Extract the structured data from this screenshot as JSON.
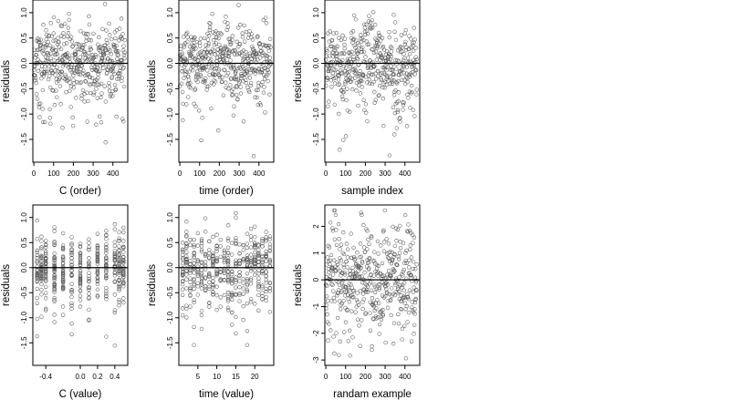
{
  "chart_data": [
    {
      "type": "scatter",
      "panel": "C-order",
      "xlabel": "C (order)",
      "ylabel": "residuals",
      "xlim": [
        -5,
        475
      ],
      "ylim": [
        -1.95,
        1.25
      ],
      "xticks": [
        0,
        100,
        200,
        300,
        400
      ],
      "xtick_labels": [
        "0",
        "100",
        "200",
        "300",
        "400"
      ],
      "yticks": [
        -1.5,
        -1.0,
        -0.5,
        0.0,
        0.5,
        1.0
      ],
      "ytick_labels": [
        "-1.5",
        "-1.0",
        "-0.5",
        "0.0",
        "0.5",
        "1.0"
      ],
      "reference_line_y": 0,
      "n_points": 460,
      "x_pattern": "index",
      "x_range": [
        0,
        460
      ],
      "seed": 11
    },
    {
      "type": "scatter",
      "panel": "time-order",
      "xlabel": "time (order)",
      "ylabel": "residuals",
      "xlim": [
        -5,
        475
      ],
      "ylim": [
        -1.95,
        1.25
      ],
      "xticks": [
        0,
        100,
        200,
        300,
        400
      ],
      "xtick_labels": [
        "0",
        "100",
        "200",
        "300",
        "400"
      ],
      "yticks": [
        -1.5,
        -1.0,
        -0.5,
        0.0,
        0.5,
        1.0
      ],
      "ytick_labels": [
        "-1.5",
        "-1.0",
        "-0.5",
        "0.0",
        "0.5",
        "1.0"
      ],
      "reference_line_y": 0,
      "n_points": 460,
      "x_pattern": "index",
      "x_range": [
        0,
        460
      ],
      "seed": 23
    },
    {
      "type": "scatter",
      "panel": "sample-index",
      "xlabel": "sample index",
      "ylabel": "residuals",
      "xlim": [
        -5,
        475
      ],
      "ylim": [
        -1.95,
        1.25
      ],
      "xticks": [
        0,
        100,
        200,
        300,
        400
      ],
      "xtick_labels": [
        "0",
        "100",
        "200",
        "300",
        "400"
      ],
      "yticks": [
        -1.5,
        -1.0,
        -0.5,
        0.0,
        0.5,
        1.0
      ],
      "ytick_labels": [
        "-1.5",
        "-1.0",
        "-0.5",
        "0.0",
        "0.5",
        "1.0"
      ],
      "reference_line_y": 0,
      "n_points": 460,
      "x_pattern": "index-structured",
      "x_range": [
        0,
        460
      ],
      "seed": 37
    },
    {
      "type": "scatter",
      "panel": "C-value",
      "xlabel": "C (value)",
      "ylabel": "residuals",
      "xlim": [
        -0.55,
        0.55
      ],
      "ylim": [
        -1.95,
        1.25
      ],
      "xticks": [
        -0.4,
        0.0,
        0.2,
        0.4
      ],
      "xtick_labels": [
        "-0.4",
        "0.0",
        "0.2",
        "0.4"
      ],
      "yticks": [
        -1.5,
        -1.0,
        -0.5,
        0.0,
        0.5,
        1.0
      ],
      "ytick_labels": [
        "-1.5",
        "-1.0",
        "-0.5",
        "0.0",
        "0.5",
        "1.0"
      ],
      "reference_line_y": 0,
      "n_points": 460,
      "x_pattern": "discrete",
      "x_range": [
        -0.5,
        0.5
      ],
      "x_levels": [
        -0.5,
        -0.45,
        -0.4,
        -0.3,
        -0.2,
        -0.1,
        0.0,
        0.1,
        0.2,
        0.3,
        0.4,
        0.45,
        0.5
      ],
      "seed": 41
    },
    {
      "type": "scatter",
      "panel": "time-value",
      "xlabel": "time (value)",
      "ylabel": "residuals",
      "xlim": [
        0,
        25
      ],
      "ylim": [
        -1.95,
        1.25
      ],
      "xticks": [
        5,
        10,
        15,
        20
      ],
      "xtick_labels": [
        "5",
        "10",
        "15",
        "20"
      ],
      "yticks": [
        -1.5,
        -1.0,
        -0.5,
        0.0,
        0.5,
        1.0
      ],
      "ytick_labels": [
        "-1.5",
        "-1.0",
        "-0.5",
        "0.0",
        "0.5",
        "1.0"
      ],
      "reference_line_y": 0,
      "n_points": 460,
      "x_pattern": "discrete",
      "x_range": [
        1,
        24
      ],
      "x_levels": [
        1,
        2,
        3,
        4,
        5,
        6,
        7,
        8,
        9,
        10,
        11,
        12,
        13,
        14,
        15,
        16,
        17,
        18,
        19,
        20,
        21,
        22,
        23,
        24
      ],
      "seed": 53
    },
    {
      "type": "scatter",
      "panel": "random-example",
      "xlabel": "randam example",
      "ylabel": "residuals",
      "xlim": [
        -5,
        475
      ],
      "ylim": [
        -3.2,
        2.8
      ],
      "xticks": [
        0,
        100,
        200,
        300,
        400
      ],
      "xtick_labels": [
        "0",
        "100",
        "200",
        "300",
        "400"
      ],
      "yticks": [
        -3,
        -2,
        -1,
        0,
        1,
        2
      ],
      "ytick_labels": [
        "-3",
        "-2",
        "-1",
        "0",
        "1",
        "2"
      ],
      "reference_line_y": 0,
      "n_points": 460,
      "x_pattern": "index",
      "x_range": [
        0,
        460
      ],
      "seed": 67
    }
  ]
}
